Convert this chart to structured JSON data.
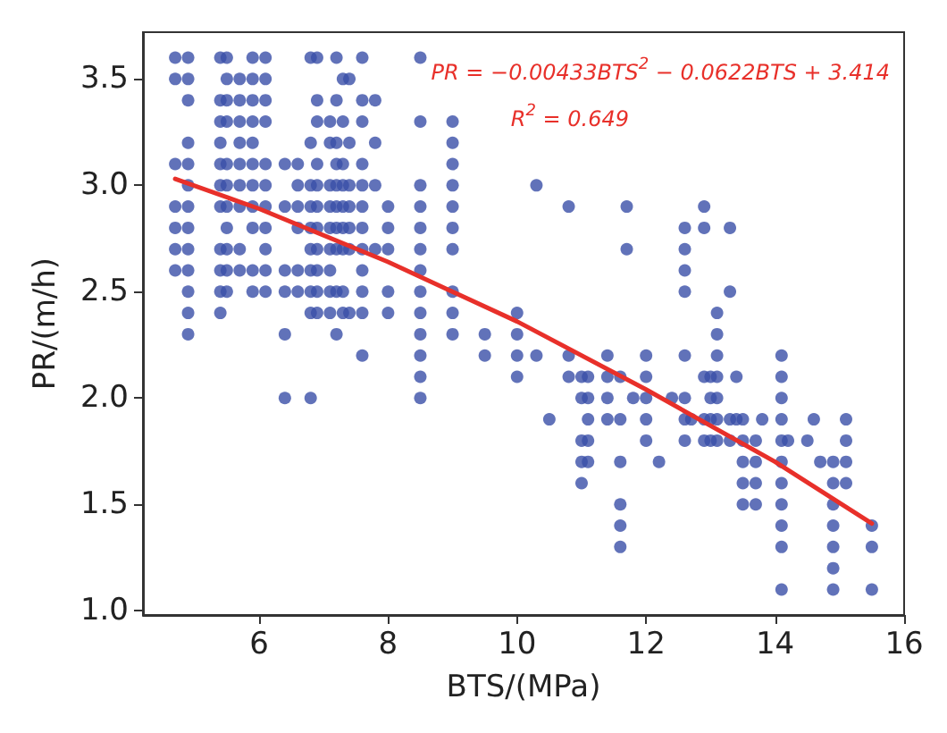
{
  "chart_data": {
    "type": "scatter",
    "xlabel": "BTS/(MPa)",
    "ylabel": "PR/(m/h)",
    "xlim": [
      4.2,
      16
    ],
    "xticks": [
      6,
      8,
      10,
      12,
      14,
      16
    ],
    "ylim": [
      0.98,
      3.72
    ],
    "yticks": [
      {
        "value": 1,
        "label": "1.0"
      },
      {
        "value": 1.5,
        "label": "1.5"
      },
      {
        "value": 2,
        "label": "2.0"
      },
      {
        "value": 2.5,
        "label": "2.5"
      },
      {
        "value": 3,
        "label": "3.0"
      },
      {
        "value": 3.5,
        "label": "3.5"
      }
    ],
    "grid": false,
    "marker": "circle",
    "annotations": [
      "PR = −0.00433BTS$^{2}$ − 0.0622BTS + 3.414",
      "R$^{2}$ = 0.649"
    ],
    "series": [
      {
        "color": "#3a4fa8",
        "x": [
          4.7,
          4.7,
          4.7,
          4.7,
          4.7,
          4.7,
          4.7,
          4.9,
          4.9,
          4.9,
          4.9,
          4.9,
          4.9,
          4.9,
          4.9,
          4.9,
          4.9,
          4.9,
          4.9,
          4.9,
          5.4,
          5.4,
          5.4,
          5.4,
          5.4,
          5.4,
          5.4,
          5.4,
          5.4,
          5.4,
          5.4,
          5.5,
          5.5,
          5.5,
          5.5,
          5.5,
          5.5,
          5.5,
          5.5,
          5.5,
          5.5,
          5.5,
          5.7,
          5.7,
          5.7,
          5.7,
          5.7,
          5.7,
          5.7,
          5.7,
          5.7,
          5.9,
          5.9,
          5.9,
          5.9,
          5.9,
          5.9,
          5.9,
          5.9,
          5.9,
          5.9,
          5.9,
          6.1,
          6.1,
          6.1,
          6.1,
          6.1,
          6.1,
          6.1,
          6.1,
          6.1,
          6.1,
          6.1,
          6.4,
          6.4,
          6.4,
          6.4,
          6.4,
          6.4,
          6.6,
          6.6,
          6.6,
          6.6,
          6.6,
          6.6,
          6.8,
          6.8,
          6.8,
          6.8,
          6.8,
          6.8,
          6.8,
          6.8,
          6.8,
          6.8,
          6.9,
          6.9,
          6.9,
          6.9,
          6.9,
          6.9,
          6.9,
          6.9,
          6.9,
          6.9,
          6.9,
          7.1,
          7.1,
          7.1,
          7.1,
          7.1,
          7.1,
          7.1,
          7.1,
          7.1,
          7.2,
          7.2,
          7.2,
          7.2,
          7.2,
          7.2,
          7.2,
          7.2,
          7.2,
          7.2,
          7.3,
          7.3,
          7.3,
          7.3,
          7.3,
          7.3,
          7.3,
          7.3,
          7.3,
          7.4,
          7.4,
          7.4,
          7.4,
          7.4,
          7.4,
          7.4,
          7.6,
          7.6,
          7.6,
          7.6,
          7.6,
          7.6,
          7.6,
          7.6,
          7.6,
          7.6,
          7.6,
          7.6,
          7.8,
          7.8,
          7.8,
          7.8,
          8.0,
          8.0,
          8.0,
          8.0,
          8.0,
          8.5,
          8.5,
          8.5,
          8.5,
          8.5,
          8.5,
          8.5,
          8.5,
          8.5,
          8.5,
          8.5,
          8.5,
          8.5,
          9.0,
          9.0,
          9.0,
          9.0,
          9.0,
          9.0,
          9.0,
          9.0,
          9.0,
          9.0,
          9.5,
          9.5,
          10.0,
          10.0,
          10.0,
          10.0,
          10.3,
          10.3,
          10.5,
          10.8,
          10.8,
          10.8,
          11.0,
          11.0,
          11.0,
          11.0,
          11.0,
          11.1,
          11.1,
          11.1,
          11.1,
          11.1,
          11.4,
          11.4,
          11.4,
          11.4,
          11.6,
          11.6,
          11.6,
          11.6,
          11.6,
          11.6,
          11.7,
          11.7,
          11.8,
          12.0,
          12.0,
          12.0,
          12.0,
          12.0,
          12.2,
          12.4,
          12.6,
          12.6,
          12.6,
          12.6,
          12.6,
          12.6,
          12.6,
          12.6,
          12.7,
          12.9,
          12.9,
          12.9,
          12.9,
          12.9,
          13.0,
          13.0,
          13.0,
          13.0,
          13.1,
          13.1,
          13.1,
          13.1,
          13.1,
          13.1,
          13.1,
          13.3,
          13.3,
          13.3,
          13.3,
          13.4,
          13.4,
          13.5,
          13.5,
          13.5,
          13.5,
          13.5,
          13.7,
          13.7,
          13.7,
          13.7,
          13.8,
          14.1,
          14.1,
          14.1,
          14.1,
          14.1,
          14.1,
          14.1,
          14.1,
          14.1,
          14.1,
          14.1,
          14.2,
          14.5,
          14.6,
          14.7,
          14.9,
          14.9,
          14.9,
          14.9,
          14.9,
          14.9,
          14.9,
          15.1,
          15.1,
          15.1,
          15.1,
          15.5,
          15.5,
          15.5
        ],
        "values": [
          3.6,
          3.5,
          3.1,
          2.9,
          2.8,
          2.7,
          2.6,
          3.6,
          3.5,
          3.4,
          3.2,
          3.1,
          3.0,
          2.9,
          2.8,
          2.7,
          2.6,
          2.5,
          2.4,
          2.3,
          3.6,
          3.4,
          3.3,
          3.2,
          3.1,
          3.0,
          2.9,
          2.7,
          2.6,
          2.5,
          2.4,
          3.6,
          3.5,
          3.4,
          3.3,
          3.1,
          3.0,
          2.9,
          2.8,
          2.7,
          2.6,
          2.5,
          3.5,
          3.4,
          3.3,
          3.2,
          3.1,
          3.0,
          2.9,
          2.7,
          2.6,
          3.6,
          3.5,
          3.4,
          3.3,
          3.2,
          3.1,
          3.0,
          2.9,
          2.8,
          2.6,
          2.5,
          3.6,
          3.5,
          3.4,
          3.3,
          3.1,
          3.0,
          2.9,
          2.8,
          2.7,
          2.6,
          2.5,
          3.1,
          2.9,
          2.6,
          2.5,
          2.3,
          2.0,
          3.1,
          3.0,
          2.9,
          2.8,
          2.6,
          2.5,
          3.6,
          3.2,
          3.0,
          2.9,
          2.8,
          2.7,
          2.6,
          2.5,
          2.4,
          2.0,
          3.6,
          3.4,
          3.3,
          3.1,
          3.0,
          2.9,
          2.8,
          2.7,
          2.6,
          2.5,
          2.4,
          3.3,
          3.2,
          3.0,
          2.9,
          2.8,
          2.7,
          2.6,
          2.5,
          2.4,
          3.6,
          3.4,
          3.2,
          3.1,
          3.0,
          2.9,
          2.8,
          2.7,
          2.5,
          2.3,
          3.5,
          3.3,
          3.1,
          3.0,
          2.9,
          2.8,
          2.7,
          2.5,
          2.4,
          3.5,
          3.2,
          3.0,
          2.9,
          2.8,
          2.7,
          2.4,
          3.6,
          3.4,
          3.3,
          3.1,
          3.0,
          2.9,
          2.8,
          2.7,
          2.6,
          2.5,
          2.4,
          2.2,
          3.4,
          3.2,
          3.0,
          2.7,
          2.9,
          2.8,
          2.7,
          2.5,
          2.4,
          3.6,
          3.3,
          3.0,
          2.9,
          2.8,
          2.7,
          2.6,
          2.5,
          2.4,
          2.3,
          2.2,
          2.1,
          2.0,
          3.3,
          3.2,
          3.1,
          3.0,
          2.9,
          2.8,
          2.7,
          2.5,
          2.4,
          2.3,
          2.3,
          2.2,
          2.4,
          2.3,
          2.2,
          2.1,
          3.0,
          2.2,
          1.9,
          2.9,
          2.2,
          2.1,
          2.1,
          2.0,
          1.8,
          1.7,
          1.6,
          2.1,
          2.0,
          1.9,
          1.8,
          1.7,
          2.2,
          2.1,
          2.0,
          1.9,
          2.1,
          1.9,
          1.7,
          1.5,
          1.4,
          1.3,
          2.9,
          2.7,
          2.0,
          2.2,
          2.1,
          2.0,
          1.9,
          1.8,
          1.7,
          2.0,
          2.8,
          2.7,
          2.6,
          2.5,
          2.2,
          2.0,
          1.9,
          1.8,
          1.9,
          2.9,
          2.8,
          2.1,
          1.9,
          1.8,
          2.1,
          2.0,
          1.9,
          1.8,
          2.4,
          2.3,
          2.2,
          2.1,
          2.0,
          1.9,
          1.8,
          2.8,
          2.5,
          1.9,
          1.8,
          2.1,
          1.9,
          1.9,
          1.8,
          1.7,
          1.6,
          1.5,
          1.8,
          1.7,
          1.6,
          1.5,
          1.9,
          2.2,
          2.1,
          2.0,
          1.9,
          1.8,
          1.7,
          1.6,
          1.5,
          1.4,
          1.3,
          1.1,
          1.8,
          1.8,
          1.9,
          1.7,
          1.7,
          1.6,
          1.5,
          1.4,
          1.3,
          1.2,
          1.1,
          1.9,
          1.8,
          1.7,
          1.6,
          1.4,
          1.3,
          1.1
        ]
      },
      {
        "type": "line",
        "color": "#e8302a",
        "marker": "none",
        "x": [
          4.7,
          6,
          8,
          10,
          12,
          14,
          15.5
        ],
        "values": [
          3.03,
          2.89,
          2.64,
          2.36,
          2.04,
          1.7,
          1.41
        ]
      }
    ]
  }
}
